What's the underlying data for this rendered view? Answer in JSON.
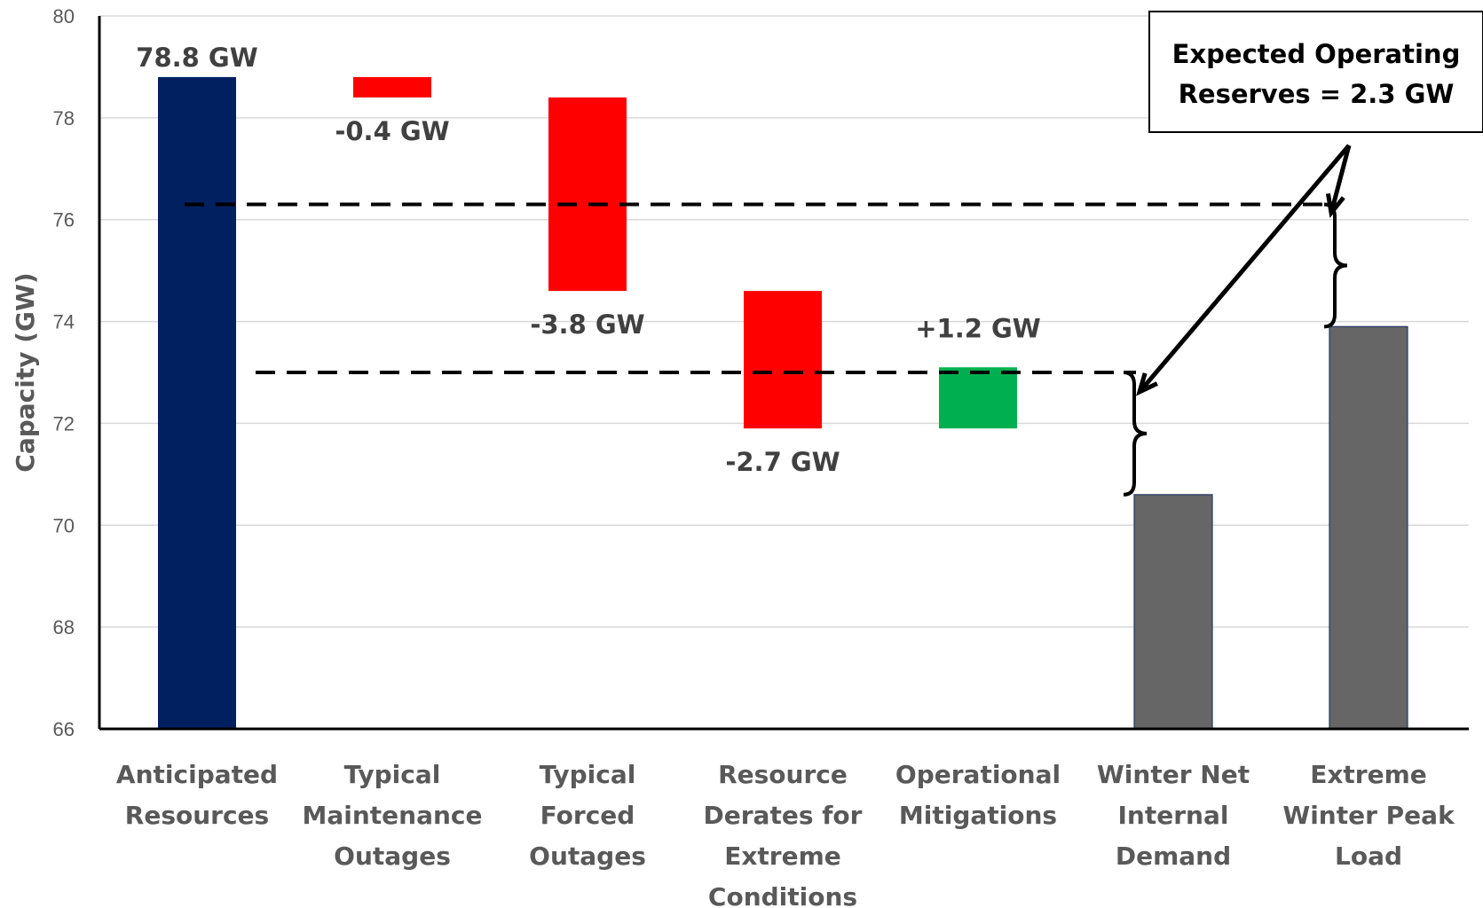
{
  "chart_data": {
    "type": "bar",
    "subtype": "waterfall",
    "ylabel": "Capacity (GW)",
    "ylim": [
      66,
      80
    ],
    "yticks": [
      "66",
      "68",
      "70",
      "72",
      "74",
      "76",
      "78",
      "80"
    ],
    "grid": true,
    "categories": [
      [
        "Anticipated",
        "Resources"
      ],
      [
        "Typical",
        "Maintenance",
        "Outages"
      ],
      [
        "Typical",
        "Forced",
        "Outages"
      ],
      [
        "Resource",
        "Derates for",
        "Extreme",
        "Conditions"
      ],
      [
        "Operational",
        "Mitigations"
      ],
      [
        "Winter Net",
        "Internal",
        "Demand"
      ],
      [
        "Extreme",
        "Winter Peak",
        "Load"
      ]
    ],
    "bars": [
      {
        "kind": "total",
        "start": 66,
        "end": 78.8,
        "color": "#002060",
        "label": "78.8 GW"
      },
      {
        "kind": "decrease",
        "start": 78.8,
        "end": 78.4,
        "color": "#ff0000",
        "label": "-0.4 GW"
      },
      {
        "kind": "decrease",
        "start": 78.4,
        "end": 74.6,
        "color": "#ff0000",
        "label": "-3.8 GW"
      },
      {
        "kind": "decrease",
        "start": 74.6,
        "end": 71.9,
        "color": "#ff0000",
        "label": "-2.7 GW"
      },
      {
        "kind": "increase",
        "start": 71.9,
        "end": 73.1,
        "color": "#00b050",
        "label": "+1.2 GW"
      },
      {
        "kind": "total",
        "start": 66,
        "end": 70.6,
        "color": "#666666",
        "label": ""
      },
      {
        "kind": "total",
        "start": 66,
        "end": 73.9,
        "color": "#666666",
        "label": ""
      }
    ],
    "annotation": [
      "Expected Operating",
      "Reserves = 2.3 GW"
    ],
    "reference_levels": [
      76.3,
      73.0
    ]
  }
}
